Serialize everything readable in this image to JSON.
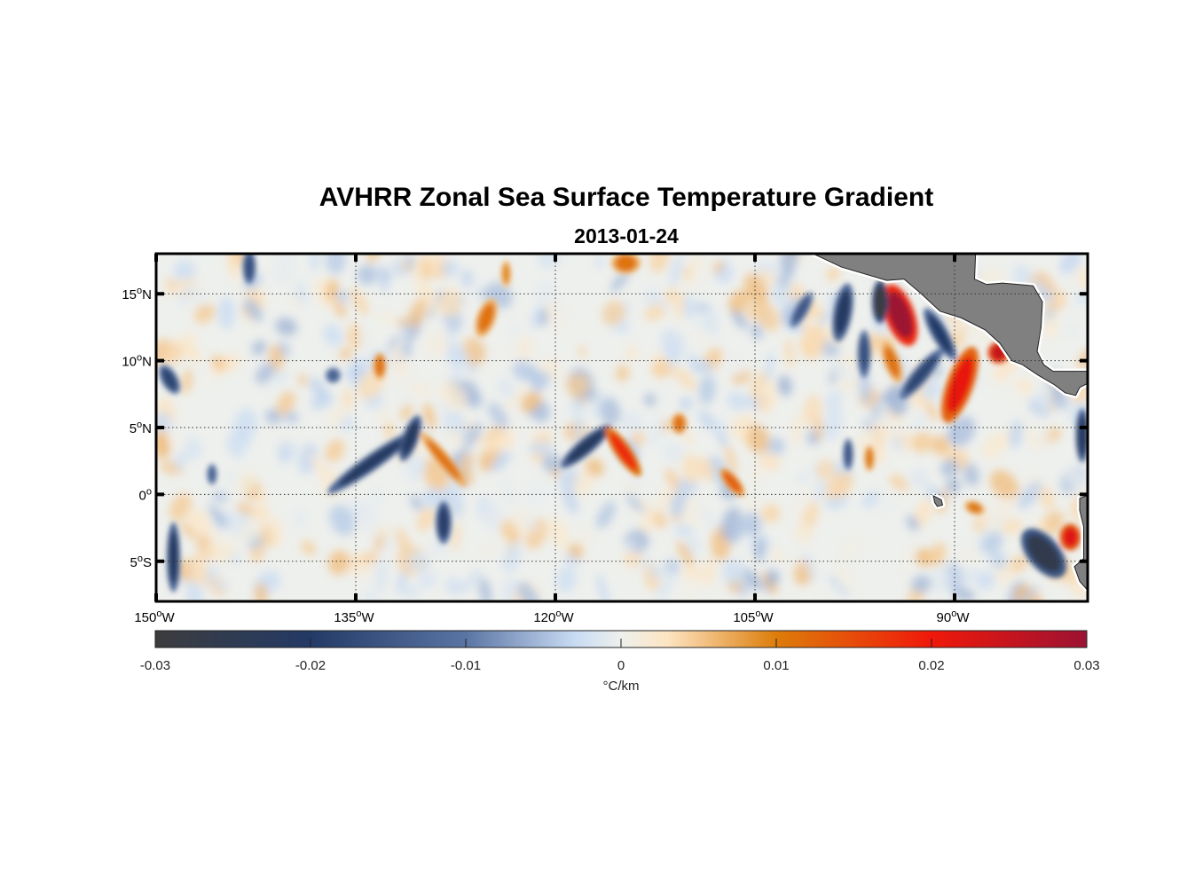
{
  "chart_data": {
    "type": "heatmap",
    "title": "AVHRR Zonal Sea Surface Temperature Gradient",
    "subtitle": "2013-01-24",
    "lon_range": [
      -150,
      -80
    ],
    "lat_range": [
      -8,
      18
    ],
    "x_ticks": [
      {
        "value": -150,
        "label": "150",
        "suffix": "W"
      },
      {
        "value": -135,
        "label": "135",
        "suffix": "W"
      },
      {
        "value": -120,
        "label": "120",
        "suffix": "W"
      },
      {
        "value": -105,
        "label": "105",
        "suffix": "W"
      },
      {
        "value": -90,
        "label": "90",
        "suffix": "W"
      }
    ],
    "y_ticks": [
      {
        "value": 15,
        "label": "15",
        "suffix": "N"
      },
      {
        "value": 10,
        "label": "10",
        "suffix": "N"
      },
      {
        "value": 5,
        "label": "5",
        "suffix": "N"
      },
      {
        "value": 0,
        "label": "0",
        "suffix": ""
      },
      {
        "value": -5,
        "label": "5",
        "suffix": "S"
      }
    ],
    "grid": true,
    "colorbar": {
      "label": "°C/km",
      "range": [
        -0.03,
        0.03
      ],
      "ticks": [
        -0.03,
        -0.02,
        -0.01,
        0,
        0.01,
        0.02,
        0.03
      ],
      "tick_labels": [
        "-0.03",
        "-0.02",
        "-0.01",
        "0",
        "0.01",
        "0.02",
        "0.03"
      ],
      "stops": [
        {
          "v": -0.03,
          "c": "#3c3c3e"
        },
        {
          "v": -0.02,
          "c": "#233a66"
        },
        {
          "v": -0.01,
          "c": "#5a74a4"
        },
        {
          "v": -0.003,
          "c": "#c8dbf3"
        },
        {
          "v": 0,
          "c": "#eef0ed"
        },
        {
          "v": 0.003,
          "c": "#fde4c2"
        },
        {
          "v": 0.01,
          "c": "#dd7d0a"
        },
        {
          "v": 0.02,
          "c": "#f0180a"
        },
        {
          "v": 0.03,
          "c": "#9c1232"
        }
      ]
    },
    "land_color": "#808080",
    "ocean_background": "#eef0ed",
    "features": [
      {
        "lon": -94.1,
        "lat": 13.4,
        "value": 0.03,
        "rx": 1.1,
        "ry": 2.4,
        "rot": -20
      },
      {
        "lon": -95.6,
        "lat": 14.4,
        "value": -0.029,
        "rx": 0.6,
        "ry": 1.6,
        "rot": 0
      },
      {
        "lon": -98.4,
        "lat": 13.6,
        "value": -0.021,
        "rx": 0.7,
        "ry": 2.2,
        "rot": 10
      },
      {
        "lon": -101.5,
        "lat": 13.8,
        "value": -0.015,
        "rx": 0.5,
        "ry": 1.5,
        "rot": 30
      },
      {
        "lon": -91.1,
        "lat": 12.0,
        "value": -0.02,
        "rx": 0.6,
        "ry": 2.2,
        "rot": -30
      },
      {
        "lon": -92.5,
        "lat": 9.0,
        "value": -0.018,
        "rx": 0.6,
        "ry": 2.4,
        "rot": 40
      },
      {
        "lon": -89.6,
        "lat": 8.2,
        "value": 0.021,
        "rx": 1.0,
        "ry": 3.0,
        "rot": 20
      },
      {
        "lon": -86.7,
        "lat": 10.6,
        "value": 0.025,
        "rx": 0.8,
        "ry": 0.8,
        "rot": 0
      },
      {
        "lon": -94.7,
        "lat": 9.9,
        "value": 0.011,
        "rx": 0.6,
        "ry": 1.6,
        "rot": -20
      },
      {
        "lon": -96.8,
        "lat": 10.5,
        "value": -0.016,
        "rx": 0.5,
        "ry": 1.8,
        "rot": 0
      },
      {
        "lon": -133.8,
        "lat": 2.4,
        "value": -0.021,
        "rx": 0.6,
        "ry": 4.0,
        "rot": 55
      },
      {
        "lon": -130.9,
        "lat": 4.2,
        "value": -0.022,
        "rx": 0.6,
        "ry": 1.8,
        "rot": 20
      },
      {
        "lon": -128.4,
        "lat": 2.6,
        "value": 0.011,
        "rx": 0.5,
        "ry": 2.6,
        "rot": -40
      },
      {
        "lon": -117.7,
        "lat": 3.6,
        "value": -0.022,
        "rx": 0.6,
        "ry": 2.4,
        "rot": 50
      },
      {
        "lon": -114.9,
        "lat": 3.2,
        "value": 0.018,
        "rx": 0.6,
        "ry": 2.2,
        "rot": -35
      },
      {
        "lon": -125.2,
        "lat": 13.2,
        "value": 0.011,
        "rx": 0.7,
        "ry": 1.5,
        "rot": 20
      },
      {
        "lon": -110.7,
        "lat": 5.3,
        "value": 0.011,
        "rx": 0.6,
        "ry": 0.8,
        "rot": 0
      },
      {
        "lon": -106.7,
        "lat": 0.9,
        "value": 0.013,
        "rx": 0.5,
        "ry": 1.3,
        "rot": -40
      },
      {
        "lon": -114.7,
        "lat": 17.3,
        "value": 0.011,
        "rx": 1.1,
        "ry": 0.8,
        "rot": 0
      },
      {
        "lon": -128.4,
        "lat": -2.1,
        "value": -0.019,
        "rx": 0.6,
        "ry": 1.6,
        "rot": 0
      },
      {
        "lon": -149.0,
        "lat": 8.6,
        "value": -0.018,
        "rx": 0.6,
        "ry": 1.2,
        "rot": -30
      },
      {
        "lon": -148.7,
        "lat": -4.7,
        "value": -0.021,
        "rx": 0.5,
        "ry": 2.6,
        "rot": 0
      },
      {
        "lon": -83.3,
        "lat": -4.4,
        "value": -0.026,
        "rx": 1.2,
        "ry": 2.2,
        "rot": -40
      },
      {
        "lon": -81.3,
        "lat": -3.2,
        "value": 0.022,
        "rx": 0.8,
        "ry": 1.0,
        "rot": 0
      },
      {
        "lon": -80.4,
        "lat": 4.4,
        "value": -0.022,
        "rx": 0.5,
        "ry": 2.0,
        "rot": 0
      },
      {
        "lon": -133.2,
        "lat": 9.6,
        "value": 0.011,
        "rx": 0.5,
        "ry": 1.0,
        "rot": 0
      },
      {
        "lon": -143.0,
        "lat": 17.0,
        "value": -0.016,
        "rx": 0.5,
        "ry": 1.3,
        "rot": 0
      },
      {
        "lon": -123.7,
        "lat": 16.5,
        "value": 0.009,
        "rx": 0.4,
        "ry": 1.0,
        "rot": 0
      },
      {
        "lon": -136.7,
        "lat": 8.9,
        "value": -0.013,
        "rx": 0.6,
        "ry": 0.6,
        "rot": 0
      },
      {
        "lon": -98.0,
        "lat": 3.0,
        "value": -0.015,
        "rx": 0.4,
        "ry": 1.2,
        "rot": 0
      },
      {
        "lon": -96.4,
        "lat": 2.7,
        "value": 0.01,
        "rx": 0.4,
        "ry": 1.0,
        "rot": 0
      },
      {
        "lon": -88.5,
        "lat": -1.0,
        "value": 0.01,
        "rx": 0.8,
        "ry": 0.5,
        "rot": 20
      },
      {
        "lon": -145.8,
        "lat": 1.5,
        "value": -0.013,
        "rx": 0.4,
        "ry": 0.8,
        "rot": 0
      }
    ],
    "land": [
      [
        [
          -101.7,
          18.5
        ],
        [
          -98.5,
          17.0
        ],
        [
          -95.1,
          16.0
        ],
        [
          -93.8,
          16.1
        ],
        [
          -92.5,
          15.0
        ],
        [
          -91.1,
          13.7
        ],
        [
          -89.5,
          13.2
        ],
        [
          -87.7,
          12.3
        ],
        [
          -86.6,
          11.3
        ],
        [
          -85.7,
          10.0
        ],
        [
          -84.9,
          9.7
        ],
        [
          -83.7,
          8.9
        ],
        [
          -82.5,
          8.2
        ],
        [
          -81.7,
          7.6
        ],
        [
          -80.9,
          7.4
        ],
        [
          -80.6,
          8.0
        ],
        [
          -79.8,
          8.4
        ],
        [
          -79.8,
          9.2
        ],
        [
          -82.6,
          9.2
        ],
        [
          -83.3,
          9.7
        ],
        [
          -83.8,
          10.7
        ],
        [
          -83.5,
          12.5
        ],
        [
          -83.4,
          14.4
        ],
        [
          -84.1,
          15.6
        ],
        [
          -86.4,
          15.8
        ],
        [
          -87.6,
          15.7
        ],
        [
          -88.5,
          16.1
        ],
        [
          -88.4,
          18.5
        ]
      ],
      [
        [
          -79.8,
          0.0
        ],
        [
          -80.6,
          -0.3
        ],
        [
          -80.6,
          -1.2
        ],
        [
          -80.3,
          -2.4
        ],
        [
          -80.3,
          -4.8
        ],
        [
          -81.0,
          -5.4
        ],
        [
          -80.6,
          -6.5
        ],
        [
          -79.8,
          -7.4
        ]
      ],
      [
        [
          -91.6,
          -0.1
        ],
        [
          -91.0,
          -0.4
        ],
        [
          -90.9,
          -0.8
        ],
        [
          -91.3,
          -0.9
        ],
        [
          -91.5,
          -0.6
        ]
      ]
    ]
  }
}
